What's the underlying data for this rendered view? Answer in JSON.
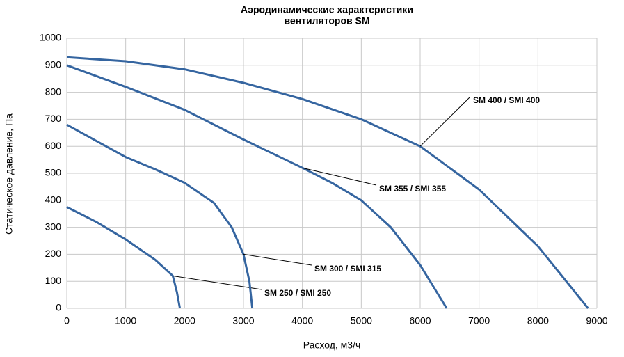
{
  "chart_data": {
    "type": "line",
    "title": "Аэродинамические характеристики",
    "subtitle": "вентиляторов SM",
    "x_label": "Расход, м3/ч",
    "y_label": "Статическое давление, Па",
    "xlim": [
      0,
      9000
    ],
    "xticks": [
      0,
      1000,
      2000,
      3000,
      4000,
      5000,
      6000,
      7000,
      8000,
      9000
    ],
    "ylim": [
      0,
      1000
    ],
    "yticks": [
      0,
      100,
      200,
      300,
      400,
      500,
      600,
      700,
      800,
      900,
      1000
    ],
    "grid": true,
    "series": [
      {
        "name": "SM 250 / SMI 250",
        "color": "#3565a0",
        "x": [
          0,
          500,
          1000,
          1500,
          1800,
          1870,
          1920
        ],
        "values": [
          375,
          320,
          255,
          180,
          120,
          60,
          0
        ]
      },
      {
        "name": "SM 300 / SMI 315",
        "color": "#3565a0",
        "x": [
          0,
          500,
          1000,
          1500,
          2000,
          2500,
          2800,
          3000,
          3100,
          3150
        ],
        "values": [
          680,
          620,
          560,
          515,
          465,
          390,
          300,
          200,
          100,
          0
        ]
      },
      {
        "name": "SM 355 / SMI 355",
        "color": "#3565a0",
        "x": [
          0,
          1000,
          2000,
          3000,
          4000,
          4500,
          5000,
          5500,
          6000,
          6450
        ],
        "values": [
          900,
          820,
          735,
          625,
          520,
          465,
          400,
          300,
          160,
          0
        ]
      },
      {
        "name": "SM 400 / SMI 400",
        "color": "#3565a0",
        "x": [
          0,
          1000,
          2000,
          3000,
          4000,
          5000,
          6000,
          7000,
          8000,
          8850
        ],
        "values": [
          930,
          915,
          885,
          835,
          775,
          700,
          600,
          440,
          230,
          0
        ]
      }
    ]
  }
}
